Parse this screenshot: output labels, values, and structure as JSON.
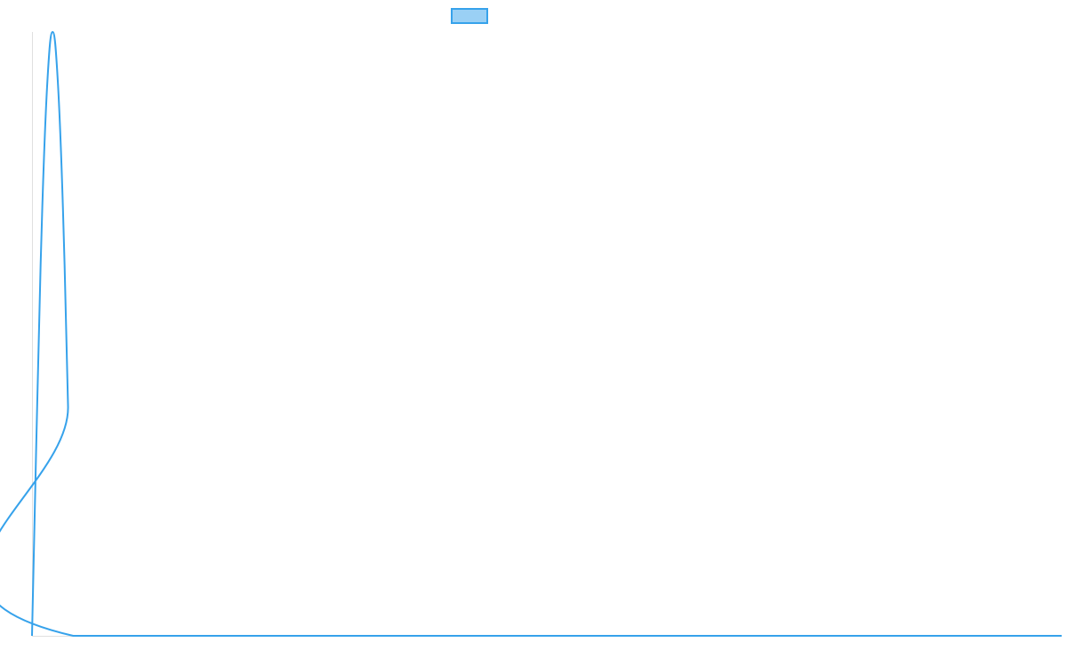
{
  "chart_data": {
    "type": "line",
    "title": "",
    "xlabel": "",
    "ylabel": "",
    "xlim": [
      0,
      100
    ],
    "ylim": [
      0,
      1
    ],
    "grid": false,
    "legend": "top",
    "series": [
      {
        "name": "",
        "color": "#36a2eb",
        "fill_color": "#9ad0f5",
        "x": [
          0,
          0.5,
          1,
          1.5,
          2,
          2.5,
          3,
          3.5,
          4,
          100
        ],
        "y": [
          0,
          0.38,
          0.71,
          0.92,
          1,
          0.92,
          0.71,
          0.38,
          0,
          0
        ]
      }
    ]
  }
}
